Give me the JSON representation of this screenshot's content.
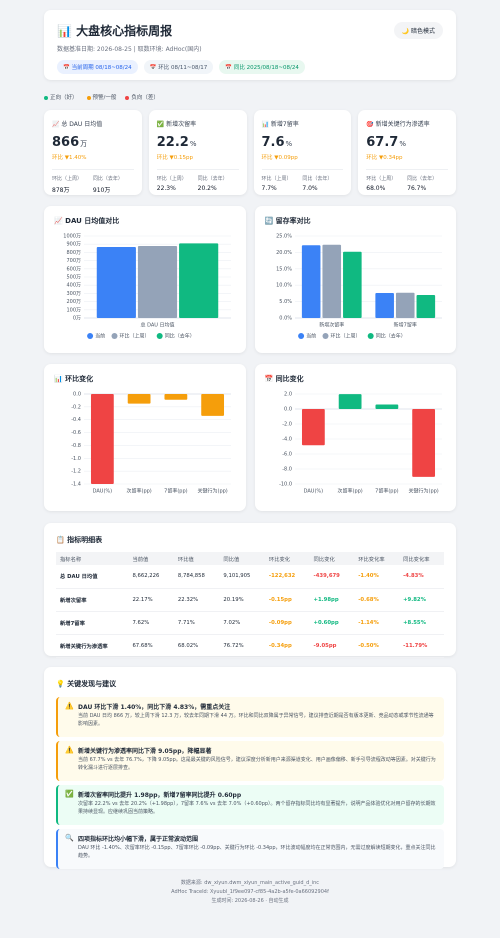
{
  "header": {
    "title": "📊 大盘核心指标周报",
    "theme_button": "🌙 暗色模式",
    "meta": "数据基准日期: 2026-08-25 | 取数环境: AdHoc(国内)",
    "chips": [
      "📅 当前周期 08/18~08/24",
      "📅 环比 08/11~08/17",
      "📅 同比 2025/08/18~08/24"
    ]
  },
  "status_legend": [
    "正向（好）",
    "预警/一般",
    "负向（差）"
  ],
  "kpis": [
    {
      "label": "📈 总 DAU 日均值",
      "value": "866",
      "unit": "万",
      "change": "环比 ▼1.40%",
      "prev_label": "环比（上周）",
      "prev": "878万",
      "yoy_label": "同比（去年）",
      "yoy": "910万"
    },
    {
      "label": "✅ 新增次留率",
      "value": "22.2",
      "unit": "%",
      "change": "环比 ▼0.15pp",
      "prev_label": "环比（上周）",
      "prev": "22.3%",
      "yoy_label": "同比（去年）",
      "yoy": "20.2%"
    },
    {
      "label": "📊 新增7留率",
      "value": "7.6",
      "unit": "%",
      "change": "环比 ▼0.09pp",
      "prev_label": "环比（上周）",
      "prev": "7.7%",
      "yoy_label": "同比（去年）",
      "yoy": "7.0%"
    },
    {
      "label": "🎯 新增关键行为渗透率",
      "value": "67.7",
      "unit": "%",
      "change": "环比 ▼0.34pp",
      "prev_label": "环比（上周）",
      "prev": "68.0%",
      "yoy_label": "同比（去年）",
      "yoy": "76.7%"
    }
  ],
  "chart_data": [
    {
      "type": "bar",
      "title": "📈 DAU 日均值对比",
      "categories": [
        "总 DAU 日均值"
      ],
      "series": [
        {
          "name": "当前",
          "color": "#3b82f6",
          "values": [
            866.2226
          ]
        },
        {
          "name": "环比（上周）",
          "color": "#94a3b8",
          "values": [
            878.4858
          ]
        },
        {
          "name": "同比（去年）",
          "color": "#10b981",
          "values": [
            910.1905
          ]
        }
      ],
      "ylim": [
        0,
        1000
      ],
      "yticks": [
        {
          "value": 0,
          "label": "0万"
        },
        {
          "value": 100,
          "label": "100万"
        },
        {
          "value": 200,
          "label": "200万"
        },
        {
          "value": 300,
          "label": "300万"
        },
        {
          "value": 400,
          "label": "400万"
        },
        {
          "value": 500,
          "label": "500万"
        },
        {
          "value": 600,
          "label": "600万"
        },
        {
          "value": 700,
          "label": "700万"
        },
        {
          "value": 800,
          "label": "800万"
        },
        {
          "value": 900,
          "label": "900万"
        },
        {
          "value": 1000,
          "label": "1000万"
        }
      ],
      "grid": true,
      "legend": "bottom"
    },
    {
      "type": "bar",
      "title": "🔄 留存率对比",
      "categories": [
        "新增次留率",
        "新增7留率"
      ],
      "series": [
        {
          "name": "当前",
          "color": "#3b82f6",
          "values": [
            22.17,
            7.62
          ]
        },
        {
          "name": "环比（上周）",
          "color": "#94a3b8",
          "values": [
            22.32,
            7.71
          ]
        },
        {
          "name": "同比（去年）",
          "color": "#10b981",
          "values": [
            20.19,
            7.02
          ]
        }
      ],
      "ylim": [
        0,
        25
      ],
      "yticks": [
        {
          "value": 0,
          "label": "0.0%"
        },
        {
          "value": 5,
          "label": "5.0%"
        },
        {
          "value": 10,
          "label": "10.0%"
        },
        {
          "value": 15,
          "label": "15.0%"
        },
        {
          "value": 20,
          "label": "20.0%"
        },
        {
          "value": 25,
          "label": "25.0%"
        }
      ],
      "grid": true,
      "legend": "bottom"
    },
    {
      "type": "bar",
      "title": "📊 环比变化",
      "categories": [
        "DAU(%)",
        "次留率(pp)",
        "7留率(pp)",
        "关键行为(pp)"
      ],
      "values": [
        -1.4,
        -0.15,
        -0.09,
        -0.34
      ],
      "colors": [
        "#ef4444",
        "#f59e0b",
        "#f59e0b",
        "#f59e0b"
      ],
      "ylim": [
        -1.4,
        0
      ],
      "yticks": [
        {
          "value": 0,
          "label": "0.0"
        },
        -0.2,
        -0.4,
        -0.6,
        -0.8,
        {
          "value": -1,
          "label": "-1.0"
        },
        -1.2,
        -1.4
      ],
      "grid": true
    },
    {
      "type": "bar",
      "title": "📅 同比变化",
      "categories": [
        "DAU(%)",
        "次留率(pp)",
        "7留率(pp)",
        "关键行为(pp)"
      ],
      "values": [
        -4.83,
        1.98,
        0.6,
        -9.05
      ],
      "colors": [
        "#ef4444",
        "#10b981",
        "#10b981",
        "#ef4444"
      ],
      "ylim": [
        -10,
        2
      ],
      "yticks": [
        {
          "value": 2,
          "label": "2.0"
        },
        {
          "value": 0,
          "label": "0.0"
        },
        {
          "value": -2,
          "label": "-2.0"
        },
        {
          "value": -4,
          "label": "-4.0"
        },
        {
          "value": -6,
          "label": "-6.0"
        },
        {
          "value": -8,
          "label": "-8.0"
        },
        {
          "value": -10,
          "label": "-10.0"
        }
      ],
      "grid": true
    }
  ],
  "table": {
    "title": "📋 指标明细表",
    "headers": [
      "指标名称",
      "当前值",
      "环比值",
      "同比值",
      "环比变化",
      "同比变化",
      "环比变化率",
      "同比变化率"
    ],
    "rows": [
      [
        "总 DAU 日均值",
        "8,662,226",
        "8,784,858",
        "9,101,905",
        "-122,632",
        "-439,679",
        "-1.40%",
        "-4.83%"
      ],
      [
        "新增次留率",
        "22.17%",
        "22.32%",
        "20.19%",
        "-0.15pp",
        "+1.98pp",
        "-0.68%",
        "+9.82%"
      ],
      [
        "新增7留率",
        "7.62%",
        "7.71%",
        "7.02%",
        "-0.09pp",
        "+0.60pp",
        "-1.14%",
        "+8.55%"
      ],
      [
        "新增关键行为渗透率",
        "67.68%",
        "68.02%",
        "76.72%",
        "-0.34pp",
        "-9.05pp",
        "-0.50%",
        "-11.79%"
      ]
    ]
  },
  "insights": {
    "title": "💡 关键发现与建议",
    "items": [
      {
        "icon": "⚠️",
        "title": "DAU 环比下滑 1.40%，同比下滑 4.83%，需重点关注",
        "text": "当前 DAU 日均 866 万，较上周下滑 12.3 万，较去年同期下滑 44 万。环比和同比双降属于异常信号，建议排查近期是否有版本更新、竞品动态或季节性流通等影响因素。"
      },
      {
        "icon": "⚠️",
        "title": "新增关键行为渗透率同比下滑 9.05pp，降幅显著",
        "text": "当前 67.7% vs 去年 76.7%，下降 9.05pp。这是最关键的风险信号，建议深度分析新用户来源渠道变化、用户画像偏移、新手引导流程改动等因素。对关键行为转化漏斗进行逐层排查。"
      },
      {
        "icon": "✅",
        "title": "新增次留率同比提升 1.98pp，新增7留率同比提升 0.60pp",
        "text": "次留率 22.2% vs 去年 20.2%（+1.98pp），7留率 7.6% vs 去年 7.0%（+0.60pp）。两个留存指标同比均有显著提升，说明产品体验优化对用户留存的长期效果持续显现。应继续巩固当前策略。"
      },
      {
        "icon": "🔍",
        "title": "四项指标环比均小幅下滑，属于正常波动范围",
        "text": "DAU 环比 -1.40%、次留率环比 -0.15pp、7留率环比 -0.09pp、关键行为环比 -0.34pp，环比波动幅度均在正常范围内，无需过度解读短期变化，重点关注同比趋势。"
      }
    ]
  },
  "footer": [
    "数据来源: dw_xiyun.dwm_xiyun_main_active_guid_d_inc",
    "AdHoc TraceId: Xyuubl_1f9ee097-cf85-4a2b-a5fe-0a66092904f",
    "生成时间: 2026-08-26 · 自动生成"
  ]
}
